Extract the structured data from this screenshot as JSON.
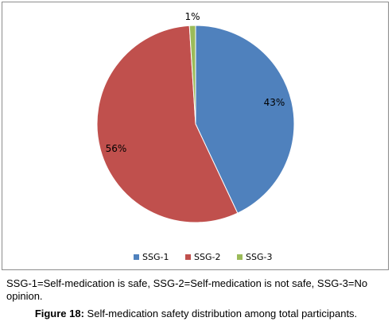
{
  "chart_data": {
    "type": "pie",
    "slices": [
      {
        "label": "SSG-1",
        "value": 43,
        "display": "43%",
        "color": "#4f81bd"
      },
      {
        "label": "SSG-2",
        "value": 56,
        "display": "56%",
        "color": "#c0504d"
      },
      {
        "label": "SSG-3",
        "value": 1,
        "display": "1%",
        "color": "#9bbb59"
      }
    ],
    "legend_position": "bottom",
    "start_angle_deg": 0,
    "direction": "clockwise"
  },
  "note": "SSG-1=Self-medication is safe, SSG-2=Self-medication is not safe, SSG-3=No opinion.",
  "caption": {
    "label": "Figure 18:",
    "text": " Self-medication safety distribution among total participants."
  }
}
